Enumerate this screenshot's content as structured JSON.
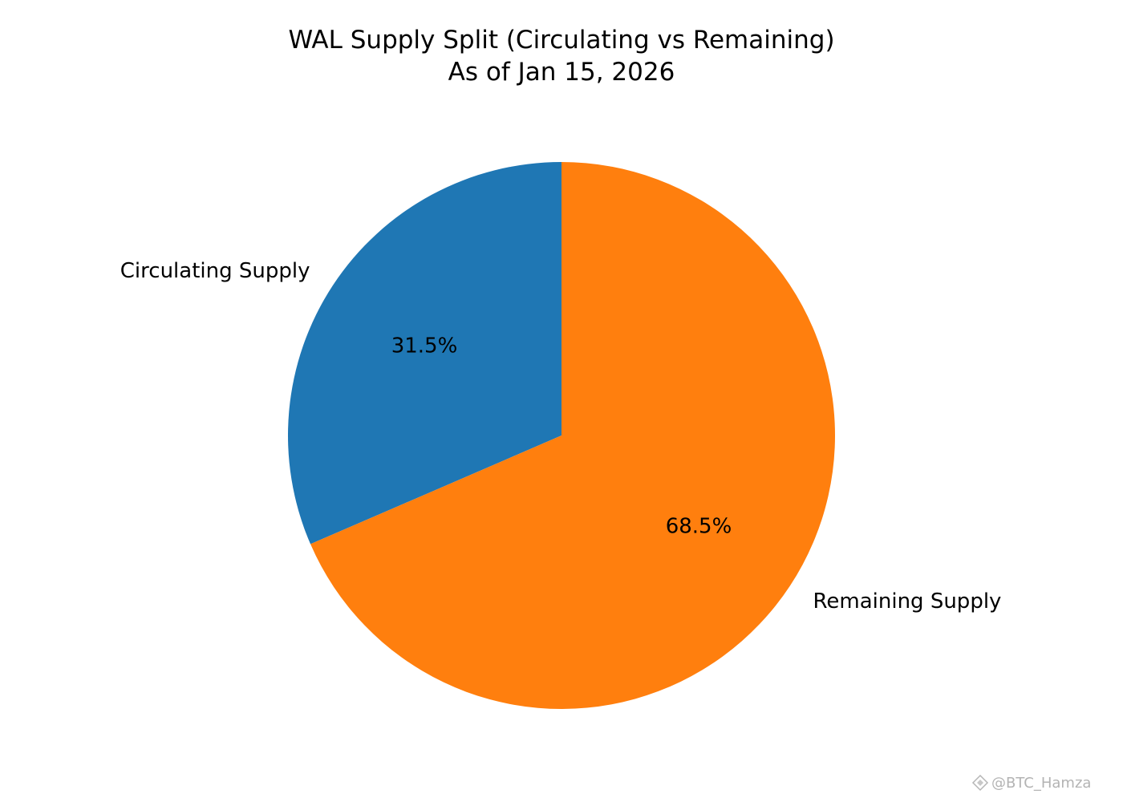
{
  "chart_data": {
    "type": "pie",
    "title": "WAL Supply Split (Circulating vs Remaining)",
    "subtitle": "As of Jan 15, 2026",
    "slices": [
      {
        "label": "Circulating Supply",
        "value": 31.5,
        "pct_label": "31.5%",
        "color": "#1f77b4"
      },
      {
        "label": "Remaining Supply",
        "value": 68.5,
        "pct_label": "68.5%",
        "color": "#ff7f0e"
      }
    ],
    "start_angle": 90,
    "direction": "counterclockwise",
    "legend": "none"
  },
  "watermark": {
    "text": "@BTC_Hamza",
    "icon": "diamond-logo-icon"
  }
}
